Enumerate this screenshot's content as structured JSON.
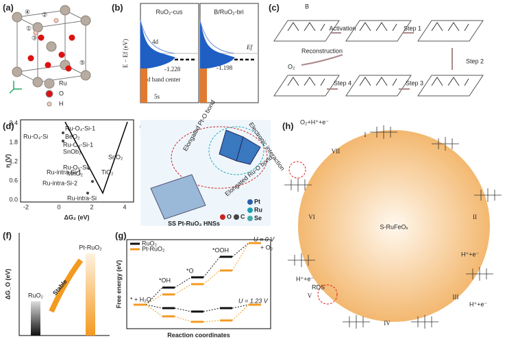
{
  "panels": {
    "a": {
      "label": "(a)",
      "sites": [
        "④",
        "②",
        "①",
        "③",
        "⑤"
      ],
      "legend": [
        "Ru",
        "O",
        "H"
      ]
    },
    "b": {
      "label": "(b)",
      "titles": [
        "RuO₂-cus",
        "B/RuO₂-bri"
      ],
      "y_label": "E − Ef (eV)",
      "annotations": [
        "4d",
        "Ef",
        "-1.228",
        "-1.198",
        "d band center",
        "5s"
      ]
    },
    "c": {
      "label": "(c)",
      "steps": [
        "Activation",
        "Step 1",
        "Step 2",
        "Step 3",
        "Step 4",
        "Reconstruction"
      ],
      "atoms": [
        "B",
        "O₂"
      ]
    },
    "d": {
      "label": "(d)",
      "y_label": "η (V)",
      "x_label": "ΔG₂ (eV)",
      "yticks": [
        "2.4",
        "1.8",
        "1.2",
        "0.6",
        "0.0"
      ],
      "xticks": [
        "-2",
        "0",
        "2",
        "4"
      ],
      "points": [
        "Ru-O₄-Si",
        "Ru-O₄-Si-1",
        "BeO₂",
        "Ru-O₄-Si-1",
        "SnOb₂",
        "Ru-O₅-Si",
        "MnO₂",
        "SnO₂",
        "Ru-intra-Si-1",
        "Ru-intra-Si-2",
        "TiO₂",
        "Ru-intra-Si"
      ]
    },
    "e": {
      "label": "(e)",
      "annotations": [
        "Elongated Pt-O bond",
        "Electronic interaction",
        "Elongated Ru-O bond"
      ],
      "caption": "SS Pt-RuO₂ HNSs",
      "legend": [
        "Pt",
        "Ru",
        "O",
        "C",
        "Se"
      ]
    },
    "f": {
      "label": "(f)",
      "y_label": "ΔG_O (eV)",
      "bars": [
        "RuO₂",
        "Pt-RuO₂"
      ],
      "arrow": "Stable"
    },
    "g": {
      "label": "(g)",
      "y_label": "Free energy (eV)",
      "x_label": "Reaction coordinates",
      "legend": [
        "RuO₂",
        "Pt-RuO₂"
      ],
      "states": [
        "* + H₂O",
        "*OH",
        "*O",
        "*OOH",
        "+ O₂"
      ],
      "potentials": [
        "U = 0 V",
        "U = 1.23 V"
      ]
    },
    "h": {
      "label": "(h)",
      "center": "S-RuFeOₓ",
      "steps": [
        "I",
        "II",
        "III",
        "IV",
        "V",
        "VI",
        "VII"
      ],
      "rds": "RDS",
      "species": [
        "O₂+H⁺+e⁻",
        "H⁺+e⁻",
        "H⁺+e⁻",
        "H⁺+e⁻"
      ]
    }
  }
}
